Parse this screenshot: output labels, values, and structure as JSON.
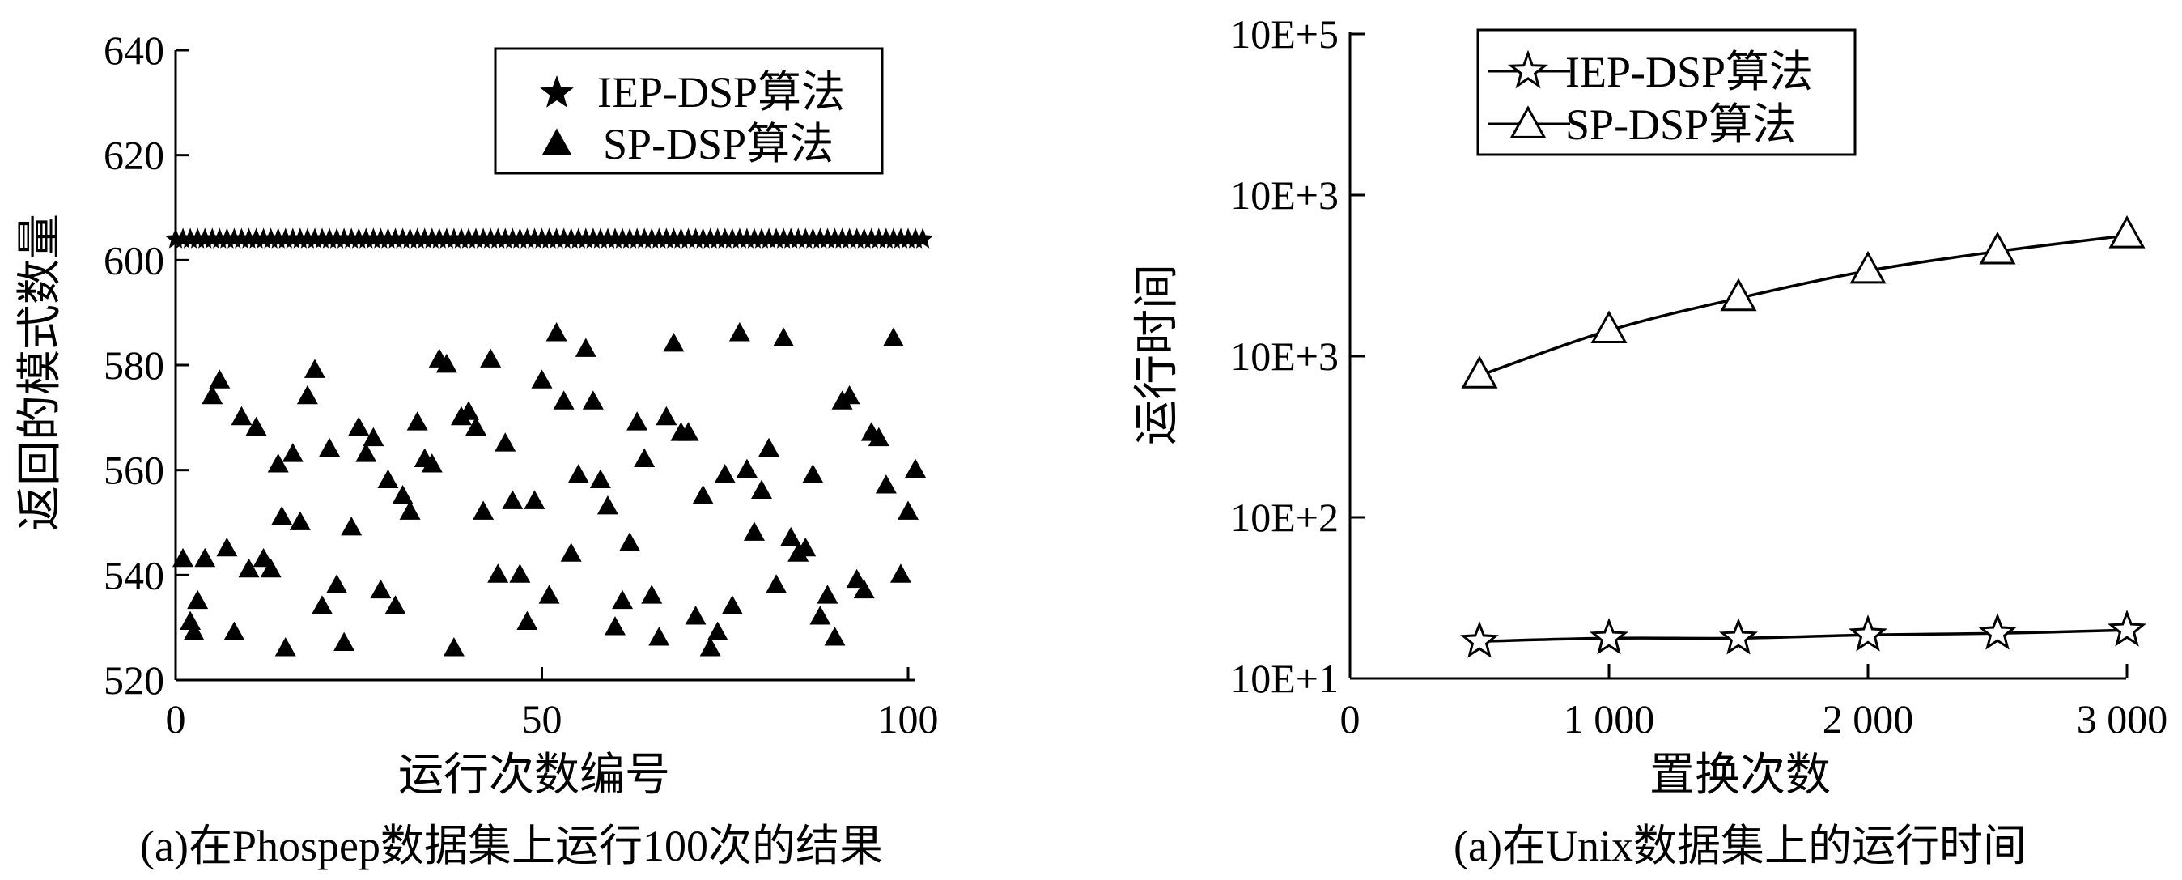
{
  "chart_data": [
    {
      "type": "scatter",
      "xlabel": "运行次数编号",
      "ylabel": "返回的模式数量",
      "caption": "(a)在Phospep数据集上运行100次的结果",
      "xlim": [
        0,
        103
      ],
      "ylim": [
        520,
        640
      ],
      "xticks": [
        "0",
        "50",
        "100"
      ],
      "yticks": [
        "520",
        "540",
        "560",
        "580",
        "600",
        "620",
        "640"
      ],
      "legend_position": "top-right",
      "series": [
        {
          "name": "IEP-DSP算法",
          "marker": "star",
          "x": [
            0,
            1,
            2,
            3,
            4,
            5,
            6,
            7,
            8,
            9,
            10,
            11,
            12,
            13,
            14,
            15,
            16,
            17,
            18,
            19,
            20,
            21,
            22,
            23,
            24,
            25,
            26,
            27,
            28,
            29,
            30,
            31,
            32,
            33,
            34,
            35,
            36,
            37,
            38,
            39,
            40,
            41,
            42,
            43,
            44,
            45,
            46,
            47,
            48,
            49,
            50,
            51,
            52,
            53,
            54,
            55,
            56,
            57,
            58,
            59,
            60,
            61,
            62,
            63,
            64,
            65,
            66,
            67,
            68,
            69,
            70,
            71,
            72,
            73,
            74,
            75,
            76,
            77,
            78,
            79,
            80,
            81,
            82,
            83,
            84,
            85,
            86,
            87,
            88,
            89,
            90,
            91,
            92,
            93,
            94,
            95,
            96,
            97,
            98,
            99,
            100,
            101,
            102
          ],
          "y": [
            604,
            604,
            604,
            604,
            604,
            604,
            604,
            604,
            604,
            604,
            604,
            604,
            604,
            604,
            604,
            604,
            604,
            604,
            604,
            604,
            604,
            604,
            604,
            604,
            604,
            604,
            604,
            604,
            604,
            604,
            604,
            604,
            604,
            604,
            604,
            604,
            604,
            604,
            604,
            604,
            604,
            604,
            604,
            604,
            604,
            604,
            604,
            604,
            604,
            604,
            604,
            604,
            604,
            604,
            604,
            604,
            604,
            604,
            604,
            604,
            604,
            604,
            604,
            604,
            604,
            604,
            604,
            604,
            604,
            604,
            604,
            604,
            604,
            604,
            604,
            604,
            604,
            604,
            604,
            604,
            604,
            604,
            604,
            604,
            604,
            604,
            604,
            604,
            604,
            604,
            604,
            604,
            604,
            604,
            604,
            604,
            604,
            604,
            604,
            604,
            604,
            604,
            604
          ]
        },
        {
          "name": "SP-DSP算法",
          "marker": "triangle",
          "x": [
            1,
            2,
            2.5,
            3,
            4,
            5,
            6,
            7,
            8,
            9,
            10,
            11,
            12,
            13,
            14,
            14.5,
            15,
            16,
            17,
            18,
            19,
            20,
            21,
            22,
            23,
            24,
            25,
            26,
            27,
            28,
            29,
            30,
            31,
            32,
            33,
            34,
            35,
            36,
            37,
            38,
            39,
            40,
            41,
            42,
            43,
            44,
            45,
            46,
            47,
            48,
            49,
            50,
            51,
            52,
            53,
            54,
            55,
            56,
            57,
            58,
            59,
            60,
            61,
            62,
            63,
            64,
            65,
            66,
            67,
            68,
            69,
            70,
            71,
            72,
            73,
            74,
            75,
            76,
            77,
            78,
            79,
            80,
            81,
            82,
            83,
            84,
            85,
            86,
            87,
            88,
            89,
            90,
            91,
            92,
            93,
            94,
            95,
            96,
            97,
            98,
            99,
            100,
            101
          ],
          "y": [
            543,
            531,
            529,
            535,
            543,
            574,
            577,
            545,
            529,
            570,
            541,
            568,
            543,
            541,
            561,
            551,
            526,
            563,
            550,
            574,
            579,
            534,
            564,
            538,
            527,
            549,
            568,
            563,
            566,
            537,
            558,
            534,
            555,
            552,
            569,
            562,
            561,
            581,
            580,
            526,
            570,
            571,
            568,
            552,
            581,
            540,
            565,
            554,
            540,
            531,
            554,
            577,
            536,
            586,
            573,
            544,
            559,
            583,
            573,
            558,
            553,
            530,
            535,
            546,
            569,
            562,
            536,
            528,
            570,
            584,
            567,
            567,
            532,
            555,
            526,
            529,
            559,
            534,
            586,
            560,
            548,
            556,
            564,
            538,
            585,
            547,
            544,
            545,
            559,
            532,
            536,
            528,
            573,
            574,
            539,
            537,
            567,
            566,
            557,
            585,
            540,
            552,
            560
          ]
        }
      ]
    },
    {
      "type": "line",
      "xlabel": "置换次数",
      "ylabel": "运行时间",
      "caption": "(a)在Unix数据集上的运行时间",
      "xlim": [
        0,
        3000
      ],
      "xticks": [
        0,
        1000,
        2000,
        3000
      ],
      "xtick_labels": [
        "0",
        "1 000",
        "2 000",
        "3 000"
      ],
      "ytick_labels": [
        "10E+1",
        "10E+2",
        "10E+3",
        "10E+3",
        "10E+5"
      ],
      "legend_position": "top-left",
      "series": [
        {
          "name": "IEP-DSP算法",
          "marker": "star",
          "x": [
            500,
            1000,
            1500,
            2000,
            2500,
            3000
          ],
          "y_axis_position": [
            0.23,
            0.25,
            0.25,
            0.27,
            0.28,
            0.3
          ]
        },
        {
          "name": "SP-DSP算法",
          "marker": "triangle",
          "x": [
            500,
            1000,
            1500,
            2000,
            2500,
            3000
          ],
          "y_axis_position": [
            1.88,
            2.16,
            2.36,
            2.53,
            2.65,
            2.75
          ]
        }
      ]
    }
  ]
}
